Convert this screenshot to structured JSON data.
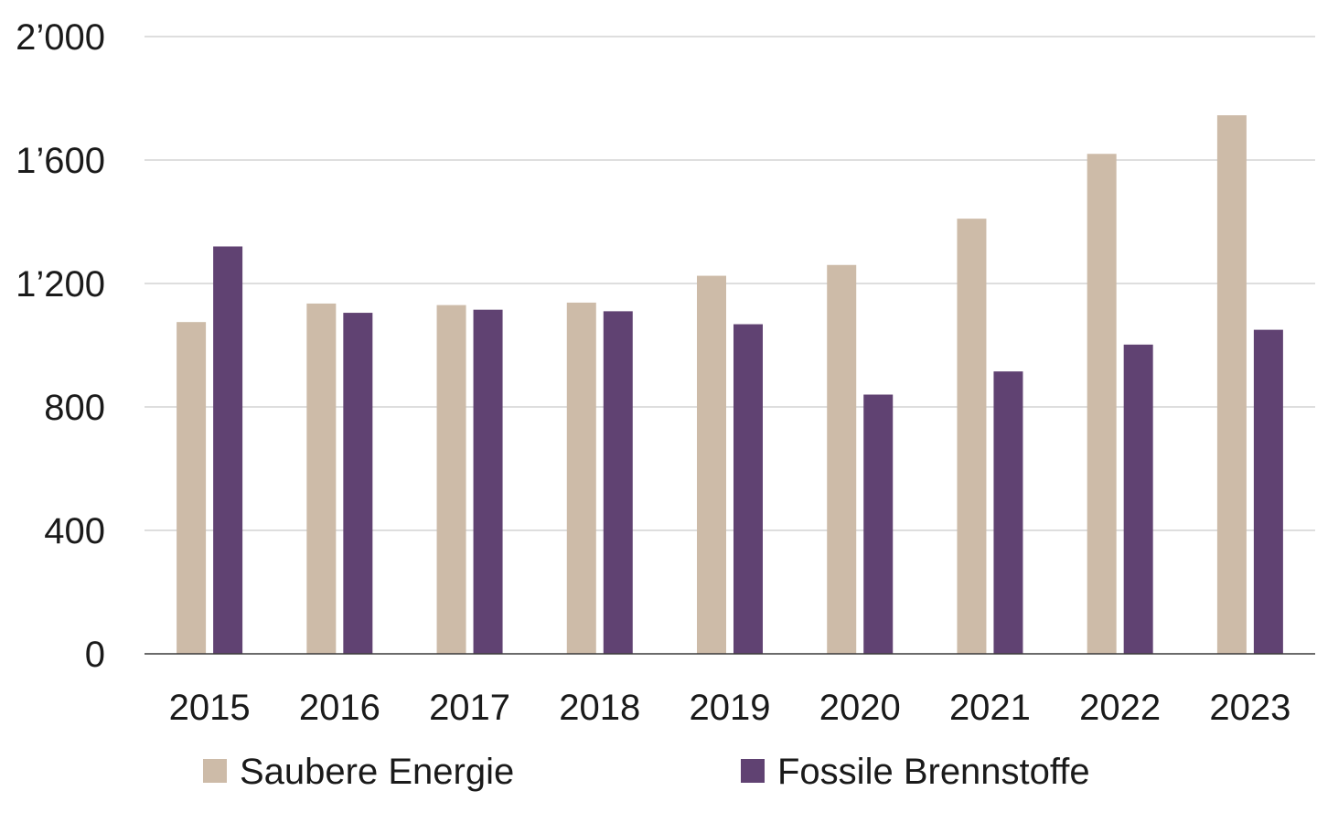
{
  "chart_data": {
    "type": "bar",
    "categories": [
      "2015",
      "2016",
      "2017",
      "2018",
      "2019",
      "2020",
      "2021",
      "2022",
      "2023"
    ],
    "series": [
      {
        "name": "Saubere Energie",
        "color": "#cdbba8",
        "values": [
          1075,
          1135,
          1130,
          1138,
          1225,
          1260,
          1410,
          1620,
          1745
        ]
      },
      {
        "name": "Fossile Brennstoffe",
        "color": "#604272",
        "values": [
          1320,
          1105,
          1115,
          1110,
          1068,
          840,
          915,
          1002,
          1050
        ]
      }
    ],
    "title": "",
    "xlabel": "",
    "ylabel": "",
    "ylim": [
      0,
      2000
    ],
    "yticks": [
      0,
      400,
      800,
      1200,
      1600,
      2000
    ],
    "ytick_labels": [
      "0",
      "400",
      "800",
      "1’200",
      "1’600",
      "2’000"
    ],
    "grid": true,
    "legend_position": "bottom"
  }
}
